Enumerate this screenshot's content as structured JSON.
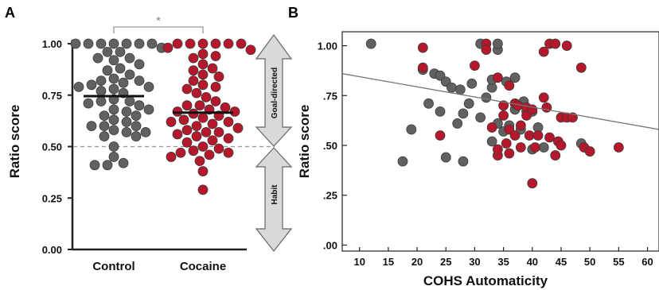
{
  "colors": {
    "control": "#616161",
    "cocaine": "#b5182b",
    "marker_edge": "#3a3a3a",
    "reference_line": "#999999",
    "bracket": "#999999",
    "arrow_fill": "#d9d9d9",
    "arrow_stroke": "#666666",
    "fit_line": "#777777"
  },
  "chart_data": [
    {
      "panel": "A",
      "type": "scatter",
      "subtype": "dot-strip",
      "ylabel": "Ratio score",
      "ylim": [
        0,
        1
      ],
      "yticks": [
        "0.00",
        "0.25",
        "0.50",
        "0.75",
        "1.00"
      ],
      "categories": [
        "Control",
        "Cocaine"
      ],
      "reference_line": 0.5,
      "significance": "*",
      "arrows": {
        "upper": "Goal-directed",
        "lower": "Habit"
      },
      "series": [
        {
          "name": "Control",
          "median": 0.745,
          "values": [
            1.0,
            1.0,
            1.0,
            1.0,
            1.0,
            1.0,
            1.0,
            0.98,
            0.96,
            0.96,
            0.93,
            0.93,
            0.92,
            0.9,
            0.88,
            0.87,
            0.85,
            0.83,
            0.82,
            0.82,
            0.81,
            0.8,
            0.79,
            0.79,
            0.78,
            0.77,
            0.76,
            0.73,
            0.72,
            0.72,
            0.71,
            0.7,
            0.68,
            0.68,
            0.67,
            0.65,
            0.65,
            0.63,
            0.62,
            0.6,
            0.6,
            0.6,
            0.58,
            0.57,
            0.57,
            0.55,
            0.55,
            0.5,
            0.45,
            0.42,
            0.41,
            0.41
          ]
        },
        {
          "name": "Cocaine",
          "median": 0.665,
          "values": [
            1.0,
            1.0,
            1.0,
            1.0,
            1.0,
            1.0,
            0.98,
            0.97,
            0.95,
            0.94,
            0.93,
            0.9,
            0.88,
            0.87,
            0.85,
            0.84,
            0.82,
            0.8,
            0.79,
            0.78,
            0.76,
            0.74,
            0.72,
            0.7,
            0.7,
            0.69,
            0.68,
            0.67,
            0.67,
            0.66,
            0.65,
            0.64,
            0.63,
            0.62,
            0.62,
            0.61,
            0.6,
            0.59,
            0.58,
            0.57,
            0.57,
            0.56,
            0.55,
            0.54,
            0.53,
            0.52,
            0.5,
            0.49,
            0.48,
            0.47,
            0.47,
            0.46,
            0.45,
            0.43,
            0.38,
            0.29
          ]
        }
      ]
    },
    {
      "panel": "B",
      "type": "scatter",
      "xlabel": "COHS Automaticity",
      "ylabel": "Ratio score",
      "xlim": [
        7,
        62
      ],
      "ylim": [
        -0.03,
        1.07
      ],
      "xticks": [
        "10",
        "15",
        "20",
        "25",
        "30",
        "35",
        "40",
        "45",
        "50",
        "55",
        "60"
      ],
      "yticks": [
        ".00",
        ".25",
        ".50",
        ".75",
        "1.00"
      ],
      "fit_line": {
        "x": [
          7,
          62
        ],
        "y": [
          0.86,
          0.58
        ]
      },
      "series": [
        {
          "name": "Control",
          "points": [
            [
              12,
              1.01
            ],
            [
              17.5,
              0.42
            ],
            [
              19,
              0.58
            ],
            [
              21,
              0.88
            ],
            [
              22,
              0.71
            ],
            [
              23,
              0.86
            ],
            [
              24,
              0.85
            ],
            [
              24,
              0.67
            ],
            [
              25,
              0.44
            ],
            [
              25,
              0.82
            ],
            [
              26,
              0.79
            ],
            [
              27,
              0.61
            ],
            [
              27.5,
              0.78
            ],
            [
              28,
              0.42
            ],
            [
              28,
              0.66
            ],
            [
              29,
              0.71
            ],
            [
              29.5,
              0.81
            ],
            [
              31,
              1.01
            ],
            [
              31,
              0.64
            ],
            [
              32,
              0.74
            ],
            [
              33,
              0.52
            ],
            [
              33,
              0.79
            ],
            [
              33,
              0.83
            ],
            [
              34,
              0.61
            ],
            [
              34,
              0.98
            ],
            [
              34,
              1.01
            ],
            [
              35,
              0.57
            ],
            [
              35.5,
              0.82
            ],
            [
              36,
              0.6
            ],
            [
              37,
              0.84
            ],
            [
              37,
              0.68
            ],
            [
              38,
              0.58
            ],
            [
              38.5,
              0.72
            ],
            [
              39,
              0.67
            ],
            [
              40,
              0.48
            ],
            [
              40,
              0.67
            ],
            [
              41,
              0.59
            ],
            [
              42,
              0.49
            ],
            [
              48.5,
              0.51
            ]
          ]
        },
        {
          "name": "Cocaine",
          "points": [
            [
              21,
              0.99
            ],
            [
              21,
              0.89
            ],
            [
              24,
              0.55
            ],
            [
              30,
              0.9
            ],
            [
              32,
              1.01
            ],
            [
              32,
              0.98
            ],
            [
              33,
              0.59
            ],
            [
              34,
              0.45
            ],
            [
              34,
              0.48
            ],
            [
              34,
              0.84
            ],
            [
              35,
              0.7
            ],
            [
              35,
              0.65
            ],
            [
              35.5,
              0.51
            ],
            [
              36,
              0.8
            ],
            [
              36,
              0.58
            ],
            [
              36,
              0.46
            ],
            [
              37,
              0.71
            ],
            [
              37,
              0.55
            ],
            [
              37.5,
              0.7
            ],
            [
              38,
              0.49
            ],
            [
              38,
              0.6
            ],
            [
              39,
              0.69
            ],
            [
              39,
              0.65
            ],
            [
              39.5,
              0.55
            ],
            [
              40,
              0.31
            ],
            [
              40,
              0.68
            ],
            [
              40.5,
              0.49
            ],
            [
              41,
              0.55
            ],
            [
              42,
              0.74
            ],
            [
              42,
              0.97
            ],
            [
              42.5,
              0.69
            ],
            [
              43,
              1.01
            ],
            [
              43,
              0.54
            ],
            [
              44,
              1.01
            ],
            [
              44,
              0.45
            ],
            [
              44.5,
              0.52
            ],
            [
              45,
              0.5
            ],
            [
              45,
              0.64
            ],
            [
              46,
              1.0
            ],
            [
              46,
              0.64
            ],
            [
              47,
              0.64
            ],
            [
              48.5,
              0.89
            ],
            [
              49,
              0.49
            ],
            [
              50,
              0.47
            ],
            [
              55,
              0.49
            ]
          ]
        }
      ]
    }
  ]
}
